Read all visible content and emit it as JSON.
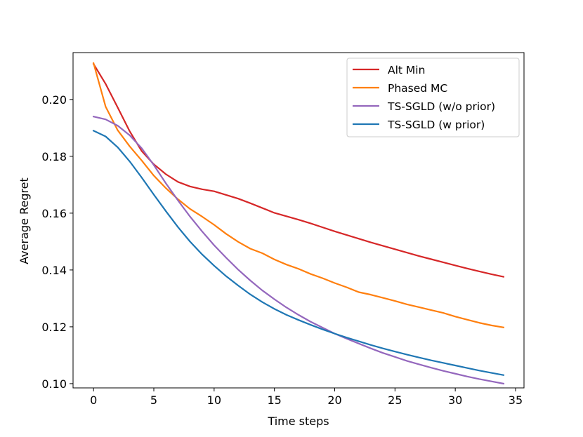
{
  "chart_data": {
    "type": "line",
    "title": "",
    "xlabel": "Time steps",
    "ylabel": "Average Regret",
    "xlim": [
      -1.7,
      35.7
    ],
    "ylim": [
      0.0985,
      0.2165
    ],
    "xticks": [
      0,
      5,
      10,
      15,
      20,
      25,
      30,
      35
    ],
    "yticks": [
      0.1,
      0.12,
      0.14,
      0.16,
      0.18,
      0.2
    ],
    "xtick_labels": [
      "0",
      "5",
      "10",
      "15",
      "20",
      "25",
      "30",
      "35"
    ],
    "ytick_labels": [
      "0.10",
      "0.12",
      "0.14",
      "0.16",
      "0.18",
      "0.20"
    ],
    "grid": false,
    "legend_position": "top-right",
    "x": [
      0,
      1,
      2,
      3,
      4,
      5,
      6,
      7,
      8,
      9,
      10,
      11,
      12,
      13,
      14,
      15,
      16,
      17,
      18,
      19,
      20,
      21,
      22,
      23,
      24,
      25,
      26,
      27,
      28,
      29,
      30,
      31,
      32,
      33,
      34
    ],
    "series": [
      {
        "name": "Alt Min",
        "color": "#d62728",
        "values": [
          0.2125,
          0.2055,
          0.1972,
          0.1888,
          0.1818,
          0.1772,
          0.1737,
          0.171,
          0.1694,
          0.1684,
          0.1677,
          0.1664,
          0.1651,
          0.1635,
          0.1618,
          0.1601,
          0.1589,
          0.1577,
          0.1564,
          0.155,
          0.1536,
          0.1523,
          0.151,
          0.1497,
          0.1485,
          0.1473,
          0.1461,
          0.1449,
          0.1438,
          0.1427,
          0.1416,
          0.1405,
          0.1395,
          0.1385,
          0.1376
        ]
      },
      {
        "name": "Phased MC",
        "color": "#ff7f0e",
        "values": [
          0.2128,
          0.1975,
          0.1892,
          0.1835,
          0.1785,
          0.1732,
          0.1688,
          0.1649,
          0.1615,
          0.1588,
          0.1559,
          0.1527,
          0.1499,
          0.1475,
          0.1459,
          0.1437,
          0.1419,
          0.1404,
          0.1386,
          0.1371,
          0.1354,
          0.1339,
          0.1322,
          0.1313,
          0.1302,
          0.1291,
          0.1279,
          0.1269,
          0.1259,
          0.1249,
          0.1236,
          0.1225,
          0.1214,
          0.1205,
          0.1198
        ]
      },
      {
        "name": "TS-SGLD (w/o prior)",
        "color": "#9467bd",
        "values": [
          0.194,
          0.193,
          0.1908,
          0.1874,
          0.1828,
          0.1769,
          0.1705,
          0.1645,
          0.1588,
          0.1536,
          0.1487,
          0.1443,
          0.1401,
          0.1363,
          0.1328,
          0.1297,
          0.1268,
          0.1242,
          0.1218,
          0.1197,
          0.1176,
          0.1158,
          0.1141,
          0.1124,
          0.1108,
          0.1094,
          0.108,
          0.1068,
          0.1056,
          0.1045,
          0.1035,
          0.1025,
          0.1016,
          0.1008,
          0.1
        ]
      },
      {
        "name": "TS-SGLD (w prior)",
        "color": "#1f77b4",
        "values": [
          0.189,
          0.187,
          0.1832,
          0.1782,
          0.1725,
          0.1665,
          0.1607,
          0.1551,
          0.15,
          0.1455,
          0.1415,
          0.1378,
          0.1345,
          0.1314,
          0.1287,
          0.1263,
          0.1242,
          0.1224,
          0.1207,
          0.1191,
          0.1176,
          0.1162,
          0.1149,
          0.1136,
          0.1124,
          0.1113,
          0.1102,
          0.1092,
          0.1082,
          0.1073,
          0.1064,
          0.1055,
          0.1046,
          0.1038,
          0.103
        ]
      }
    ]
  }
}
